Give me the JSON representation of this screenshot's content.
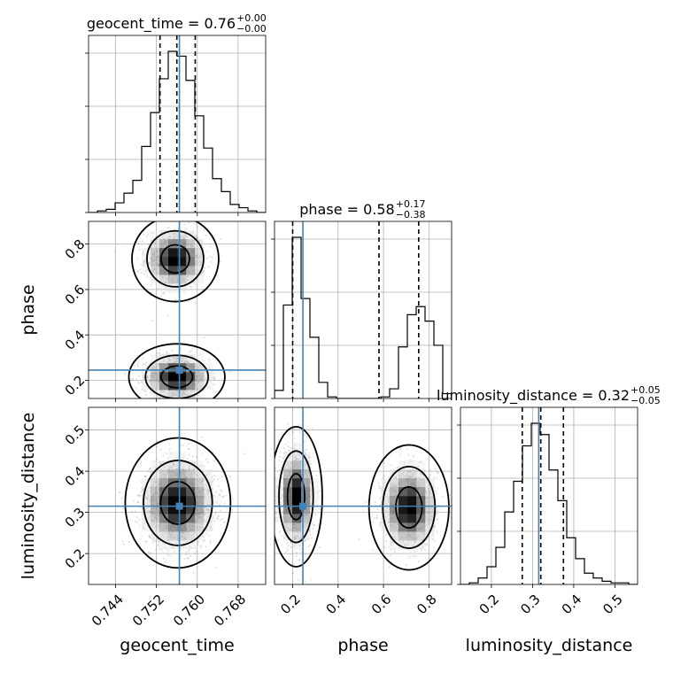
{
  "chart_data": {
    "type": "corner",
    "parameters": [
      "geocent_time",
      "phase",
      "luminosity_distance"
    ],
    "truths": {
      "geocent_time": 0.7565,
      "phase": 0.245,
      "luminosity_distance": 0.315
    },
    "truth_color": "#4682b4",
    "titles": [
      {
        "label": "geocent_time = 0.76",
        "sup": "+0.00",
        "sub": "−0.00"
      },
      {
        "label": "phase = 0.58",
        "sup": "+0.17",
        "sub": "−0.38"
      },
      {
        "label": "luminosity_distance = 0.32",
        "sup": "+0.05",
        "sub": "−0.05"
      }
    ],
    "axis_labels": {
      "x": [
        "geocent_time",
        "phase",
        "luminosity_distance"
      ],
      "y": [
        "phase",
        "luminosity_distance"
      ]
    },
    "ranges": {
      "geocent_time": [
        0.7387,
        0.7734
      ],
      "phase": [
        0.12,
        0.9
      ],
      "luminosity_distance": [
        0.125,
        0.555
      ]
    },
    "ticks": {
      "geocent_time": [
        "0.744",
        "0.752",
        "0.760",
        "0.768"
      ],
      "phase": [
        "0.2",
        "0.4",
        "0.6",
        "0.8"
      ],
      "luminosity_distance": [
        "0.2",
        "0.3",
        "0.4",
        "0.5"
      ]
    },
    "quantile_lines": {
      "geocent_time": [
        0.7527,
        0.756,
        0.7596
      ],
      "phase": [
        0.2,
        0.58,
        0.755
      ],
      "luminosity_distance": [
        0.275,
        0.32,
        0.375
      ]
    },
    "histograms": {
      "geocent_time": {
        "edges": [
          0.7387,
          0.74044,
          0.74217,
          0.74391,
          0.74564,
          0.74738,
          0.74911,
          0.75085,
          0.75258,
          0.75432,
          0.75605,
          0.75779,
          0.75952,
          0.76126,
          0.76299,
          0.76473,
          0.76646,
          0.7682,
          0.76993,
          0.77167,
          0.7734
        ],
        "counts": [
          0.0,
          0.01,
          0.02,
          0.06,
          0.12,
          0.2,
          0.41,
          0.62,
          0.83,
          1.0,
          0.97,
          0.82,
          0.6,
          0.4,
          0.21,
          0.13,
          0.05,
          0.03,
          0.01,
          0.0
        ]
      },
      "phase": {
        "edges": [
          0.12,
          0.159,
          0.198,
          0.237,
          0.276,
          0.315,
          0.354,
          0.393,
          0.432,
          0.471,
          0.51,
          0.549,
          0.588,
          0.627,
          0.666,
          0.705,
          0.744,
          0.783,
          0.822,
          0.861,
          0.9
        ],
        "counts": [
          0.05,
          0.58,
          1.0,
          0.62,
          0.38,
          0.1,
          0.01,
          0.0,
          0.0,
          0.0,
          0.0,
          0.0,
          0.01,
          0.06,
          0.32,
          0.52,
          0.57,
          0.48,
          0.33,
          0.03
        ]
      },
      "luminosity_distance": {
        "edges": [
          0.125,
          0.1465,
          0.168,
          0.1895,
          0.211,
          0.2325,
          0.254,
          0.2755,
          0.297,
          0.3185,
          0.34,
          0.3615,
          0.383,
          0.4045,
          0.426,
          0.4475,
          0.469,
          0.4905,
          0.512,
          0.5335,
          0.555
        ],
        "counts": [
          0.0,
          0.01,
          0.04,
          0.11,
          0.23,
          0.45,
          0.64,
          0.86,
          1.0,
          0.93,
          0.71,
          0.52,
          0.29,
          0.16,
          0.07,
          0.04,
          0.02,
          0.01,
          0.01,
          0.0
        ]
      }
    },
    "joint_2d": [
      {
        "x": "geocent_time",
        "y": "phase",
        "blobs": [
          {
            "cx": 0.7557,
            "cy": 0.735,
            "sx": 0.0028,
            "sy": 0.062,
            "w": 0.5
          },
          {
            "cx": 0.756,
            "cy": 0.215,
            "sx": 0.0031,
            "sy": 0.048,
            "w": 0.5
          }
        ]
      },
      {
        "x": "geocent_time",
        "y": "luminosity_distance",
        "blobs": [
          {
            "cx": 0.7562,
            "cy": 0.323,
            "sx": 0.0034,
            "sy": 0.052,
            "w": 1.0
          }
        ]
      },
      {
        "x": "phase",
        "y": "luminosity_distance",
        "blobs": [
          {
            "cx": 0.215,
            "cy": 0.338,
            "sx": 0.038,
            "sy": 0.056,
            "w": 0.5
          },
          {
            "cx": 0.712,
            "cy": 0.312,
            "sx": 0.058,
            "sy": 0.05,
            "w": 0.5
          }
        ]
      }
    ],
    "contour_levels": [
      0.39,
      0.86,
      0.99
    ],
    "grid": true
  }
}
